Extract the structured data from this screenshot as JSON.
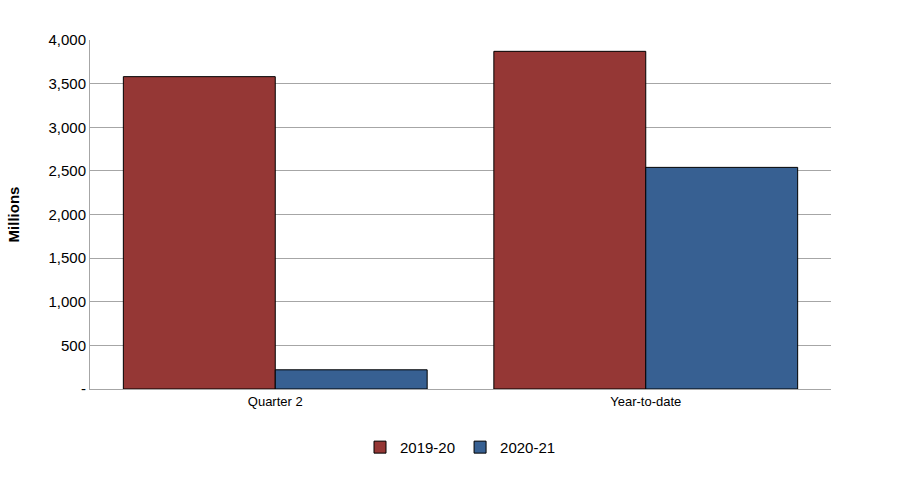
{
  "chart_data": {
    "type": "bar",
    "y_label": "Millions",
    "categories": [
      "Quarter 2",
      "Year-to-date"
    ],
    "series": [
      {
        "name": "2019-20",
        "color": "#953735",
        "values": [
          3580,
          3870
        ]
      },
      {
        "name": "2020-21",
        "color": "#376092",
        "values": [
          220,
          2540
        ]
      }
    ],
    "ylim": [
      0,
      4000
    ],
    "yticks": [
      {
        "value": 0,
        "label": "-"
      },
      500,
      {
        "value": 1000,
        "label": "1,000"
      },
      {
        "value": 1500,
        "label": "1,500"
      },
      {
        "value": 2000,
        "label": "2,000"
      },
      {
        "value": 2500,
        "label": "2,500"
      },
      {
        "value": 3000,
        "label": "3,000"
      },
      {
        "value": 3500,
        "label": "3,500"
      },
      {
        "value": 4000,
        "label": "4,000"
      }
    ],
    "grid": true,
    "legend": "bottom"
  }
}
